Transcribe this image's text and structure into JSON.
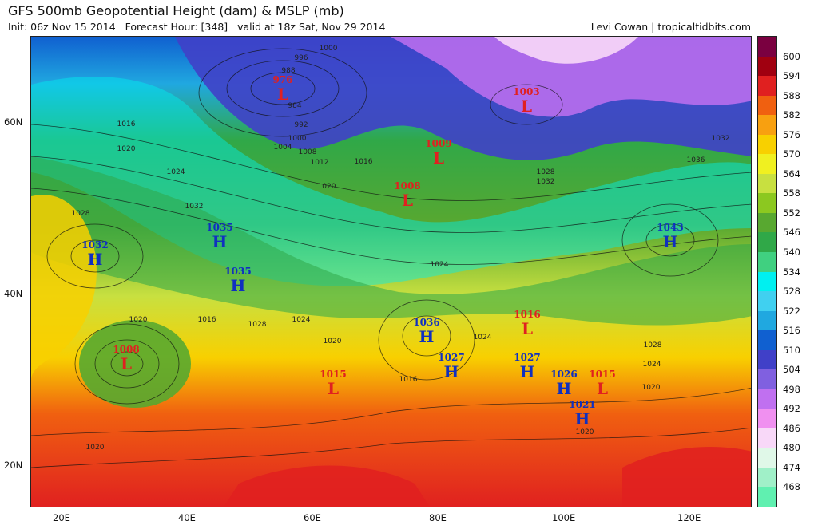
{
  "header": {
    "title": "GFS 500mb Geopotential Height (dam) & MSLP (mb)",
    "init": "Init: 06z Nov 15 2014",
    "forecast": "Forecast Hour: [348]",
    "valid": "valid at 18z Sat, Nov 29 2014",
    "credit": "Levi Cowan | tropicaltidbits.com"
  },
  "axes": {
    "lon_labels": [
      "20E",
      "40E",
      "60E",
      "80E",
      "100E",
      "120E"
    ],
    "lat_labels": [
      "60N",
      "40N",
      "20N"
    ]
  },
  "colorbar": {
    "levels": [
      "600",
      "594",
      "588",
      "582",
      "576",
      "570",
      "564",
      "558",
      "552",
      "546",
      "540",
      "534",
      "528",
      "522",
      "516",
      "510",
      "504",
      "498",
      "492",
      "486",
      "480",
      "474",
      "468"
    ],
    "colors": [
      "#7a0040",
      "#a00010",
      "#e02020",
      "#f06010",
      "#f8a010",
      "#f8d000",
      "#f0f020",
      "#c8e040",
      "#8cc820",
      "#58a830",
      "#30a848",
      "#40d080",
      "#00f0f0",
      "#40d0f0",
      "#20a8e0",
      "#1060d0",
      "#4040c8",
      "#8060e0",
      "#c070f0",
      "#f090f0",
      "#f8d8f8",
      "#e0f8e8",
      "#a0f0c8",
      "#60f0b0"
    ]
  },
  "pressure_centers": [
    {
      "type": "L",
      "value": "976",
      "color": "#e02020"
    },
    {
      "type": "L",
      "value": "1003",
      "color": "#e02020"
    },
    {
      "type": "L",
      "value": "1009",
      "color": "#e02020"
    },
    {
      "type": "L",
      "value": "1008",
      "color": "#e02020"
    },
    {
      "type": "H",
      "value": "1035",
      "color": "#1030c0"
    },
    {
      "type": "H",
      "value": "1032",
      "color": "#1030c0"
    },
    {
      "type": "H",
      "value": "1035",
      "color": "#1030c0"
    },
    {
      "type": "H",
      "value": "1043",
      "color": "#1030c0"
    },
    {
      "type": "L",
      "value": "1008",
      "color": "#e02020"
    },
    {
      "type": "H",
      "value": "1036",
      "color": "#1030c0"
    },
    {
      "type": "L",
      "value": "1016",
      "color": "#e02020"
    },
    {
      "type": "H",
      "value": "1027",
      "color": "#1030c0"
    },
    {
      "type": "H",
      "value": "1027",
      "color": "#1030c0"
    },
    {
      "type": "L",
      "value": "1015",
      "color": "#e02020"
    },
    {
      "type": "H",
      "value": "1026",
      "color": "#1030c0"
    },
    {
      "type": "L",
      "value": "1015",
      "color": "#e02020"
    },
    {
      "type": "H",
      "value": "1021",
      "color": "#1030c0"
    }
  ],
  "isobar_labels": [
    "1000",
    "996",
    "988",
    "984",
    "992",
    "1000",
    "1004",
    "1008",
    "1012",
    "1016",
    "1020",
    "1016",
    "1020",
    "1024",
    "1028",
    "1032",
    "1024",
    "1020",
    "1016",
    "1028",
    "1024",
    "1020",
    "1016",
    "1024",
    "1020",
    "1028",
    "1032",
    "1036",
    "1032",
    "1028",
    "1024",
    "1020",
    "1020"
  ]
}
